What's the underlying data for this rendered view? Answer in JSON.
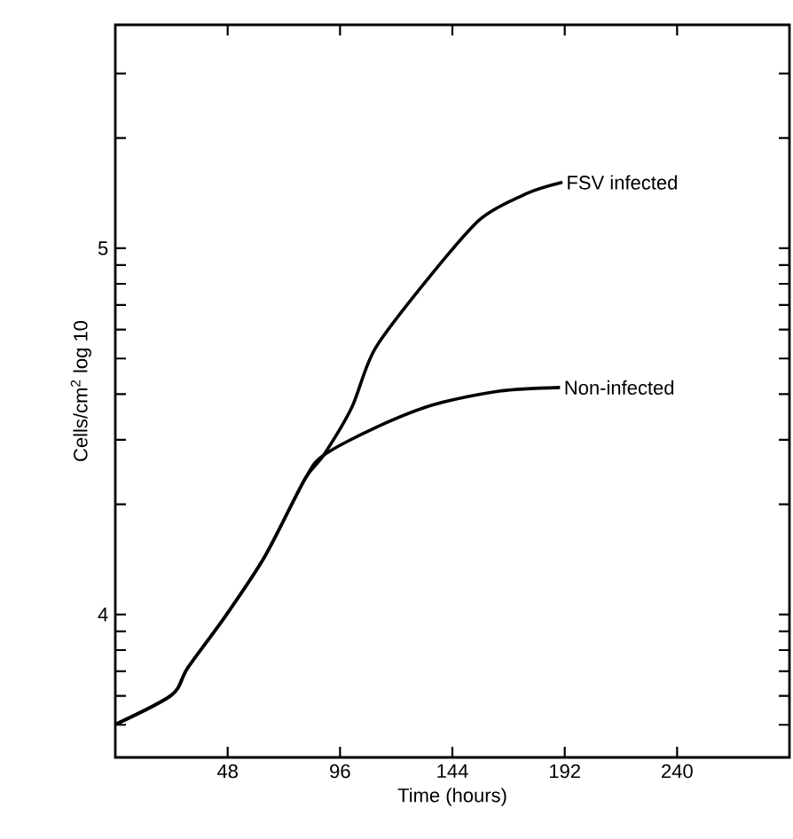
{
  "chart_data": {
    "type": "line",
    "xlabel": "Time (hours)",
    "ylabel": "Cells/cm$^{2}$ log 10",
    "xlim": [
      0,
      288
    ],
    "xticks": [
      48,
      96,
      144,
      192,
      240
    ],
    "ylim": [
      3.61,
      5.61
    ],
    "yticks": [
      {
        "value": 3.699,
        "label": null
      },
      {
        "value": 3.778,
        "label": null
      },
      {
        "value": 3.845,
        "label": null
      },
      {
        "value": 3.903,
        "label": null
      },
      {
        "value": 3.954,
        "label": null
      },
      4,
      {
        "value": 4.301,
        "label": null
      },
      {
        "value": 4.477,
        "label": null
      },
      {
        "value": 4.602,
        "label": null
      },
      {
        "value": 4.699,
        "label": null
      },
      {
        "value": 4.778,
        "label": null
      },
      {
        "value": 4.845,
        "label": null
      },
      {
        "value": 4.903,
        "label": null
      },
      {
        "value": 4.954,
        "label": null
      },
      5,
      {
        "value": 5.301,
        "label": null
      },
      {
        "value": 5.477,
        "label": null
      }
    ],
    "marker": "none",
    "line_style": "solid",
    "series": [
      {
        "name": "FSV infected",
        "color": "#000000",
        "x": [
          0,
          24,
          31,
          47.5,
          64,
          81,
          89,
          101,
          111,
          134,
          156,
          176,
          191
        ],
        "values": [
          3.7,
          3.78,
          3.855,
          4.0,
          4.16,
          4.37,
          4.435,
          4.565,
          4.726,
          4.92,
          5.08,
          5.15,
          5.18
        ]
      },
      {
        "name": "Non-infected",
        "color": "#000000",
        "x": [
          0,
          24,
          31,
          47.5,
          64,
          81,
          89,
          111,
          136,
          164,
          190
        ],
        "values": [
          3.7,
          3.78,
          3.855,
          4.0,
          4.16,
          4.37,
          4.435,
          4.51,
          4.573,
          4.61,
          4.62
        ]
      }
    ]
  }
}
